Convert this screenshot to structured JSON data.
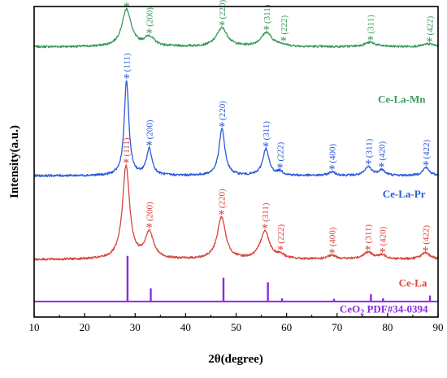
{
  "chart_data": {
    "type": "line",
    "xlabel": "2θ(degree)",
    "ylabel": "Intensity(a.u.)",
    "xlim": [
      10,
      90
    ],
    "x_ticks": [
      "10",
      "20",
      "30",
      "40",
      "50",
      "60",
      "70",
      "80",
      "90"
    ],
    "y_ticks_shown": false,
    "grid": false,
    "legend": "inline labels at right",
    "reference": {
      "name": "CeO₂ PDF#34-0394",
      "color": "#8a2be2",
      "peaks": [
        {
          "x": 28.5,
          "rel": 1.0
        },
        {
          "x": 33.1,
          "rel": 0.29
        },
        {
          "x": 47.5,
          "rel": 0.52
        },
        {
          "x": 56.3,
          "rel": 0.42
        },
        {
          "x": 59.1,
          "rel": 0.07
        },
        {
          "x": 69.4,
          "rel": 0.06
        },
        {
          "x": 76.7,
          "rel": 0.16
        },
        {
          "x": 79.1,
          "rel": 0.07
        },
        {
          "x": 88.4,
          "rel": 0.13
        }
      ]
    },
    "series": [
      {
        "name": "Ce-La-Mn",
        "color": "#3a9a5c",
        "baseline": 0.87,
        "noise": 0.0035,
        "peaks": [
          {
            "x": 28.3,
            "h": 0.12,
            "w": 1.1
          },
          {
            "x": 32.8,
            "h": 0.03,
            "w": 1.2
          },
          {
            "x": 47.2,
            "h": 0.06,
            "w": 1.3
          },
          {
            "x": 56.0,
            "h": 0.045,
            "w": 1.3
          },
          {
            "x": 58.9,
            "h": 0.006,
            "w": 1.0
          },
          {
            "x": 76.5,
            "h": 0.014,
            "w": 1.4
          },
          {
            "x": 88.2,
            "h": 0.009,
            "w": 1.4
          }
        ],
        "labels": [
          {
            "x": 28.3,
            "hkl": "(111)"
          },
          {
            "x": 32.8,
            "hkl": "(200)"
          },
          {
            "x": 47.2,
            "hkl": "(220)"
          },
          {
            "x": 56.0,
            "hkl": "(311)"
          },
          {
            "x": 59.4,
            "hkl": "(222)"
          },
          {
            "x": 76.6,
            "hkl": "(311)"
          },
          {
            "x": 88.3,
            "hkl": "(422)"
          }
        ]
      },
      {
        "name": "Ce-La-Pr",
        "color": "#2a5ad8",
        "baseline": 0.455,
        "noise": 0.0035,
        "peaks": [
          {
            "x": 28.3,
            "h": 0.305,
            "w": 0.55
          },
          {
            "x": 32.8,
            "h": 0.085,
            "w": 0.65
          },
          {
            "x": 47.2,
            "h": 0.15,
            "w": 0.7
          },
          {
            "x": 55.9,
            "h": 0.085,
            "w": 0.75
          },
          {
            "x": 58.7,
            "h": 0.012,
            "w": 0.7
          },
          {
            "x": 69.0,
            "h": 0.012,
            "w": 0.8
          },
          {
            "x": 76.2,
            "h": 0.028,
            "w": 0.8
          },
          {
            "x": 78.8,
            "h": 0.018,
            "w": 0.8
          },
          {
            "x": 87.6,
            "h": 0.026,
            "w": 0.8
          }
        ],
        "labels": [
          {
            "x": 28.3,
            "hkl": "(111)"
          },
          {
            "x": 32.8,
            "hkl": "(200)"
          },
          {
            "x": 47.2,
            "hkl": "(220)"
          },
          {
            "x": 55.9,
            "hkl": "(311)"
          },
          {
            "x": 58.7,
            "hkl": "(222)"
          },
          {
            "x": 69.0,
            "hkl": "(400)"
          },
          {
            "x": 76.2,
            "hkl": "(311)"
          },
          {
            "x": 78.8,
            "hkl": "(420)"
          },
          {
            "x": 87.6,
            "hkl": "(422)"
          }
        ]
      },
      {
        "name": "Ce-La",
        "color": "#d9453d",
        "baseline": 0.185,
        "noise": 0.0035,
        "peaks": [
          {
            "x": 28.2,
            "h": 0.3,
            "w": 0.85
          },
          {
            "x": 32.8,
            "h": 0.085,
            "w": 1.0
          },
          {
            "x": 47.1,
            "h": 0.135,
            "w": 1.0
          },
          {
            "x": 55.7,
            "h": 0.09,
            "w": 1.1
          },
          {
            "x": 58.8,
            "h": 0.012,
            "w": 1.0
          },
          {
            "x": 69.0,
            "h": 0.012,
            "w": 1.1
          },
          {
            "x": 76.1,
            "h": 0.022,
            "w": 1.2
          },
          {
            "x": 79.0,
            "h": 0.012,
            "w": 1.1
          },
          {
            "x": 87.5,
            "h": 0.02,
            "w": 1.2
          }
        ],
        "labels": [
          {
            "x": 28.2,
            "hkl": "(111)"
          },
          {
            "x": 32.8,
            "hkl": "(200)"
          },
          {
            "x": 47.1,
            "hkl": "(220)"
          },
          {
            "x": 55.7,
            "hkl": "(311)"
          },
          {
            "x": 58.8,
            "hkl": "(222)"
          },
          {
            "x": 69.0,
            "hkl": "(400)"
          },
          {
            "x": 76.1,
            "hkl": "(311)"
          },
          {
            "x": 79.0,
            "hkl": "(420)"
          },
          {
            "x": 87.5,
            "hkl": "(422)"
          }
        ]
      }
    ]
  }
}
